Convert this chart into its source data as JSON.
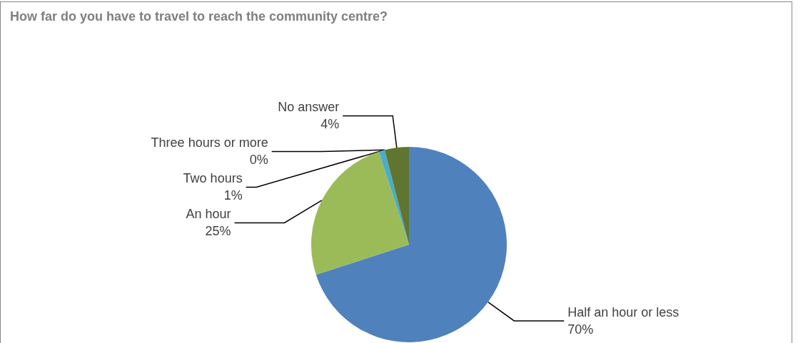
{
  "chart_data": {
    "type": "pie",
    "title": "How far do you have to travel to reach the community centre?",
    "categories": [
      "Half an hour or less",
      "An hour",
      "Two hours",
      "Three hours or more",
      "No answer"
    ],
    "values": [
      70,
      25,
      1,
      0,
      4
    ],
    "value_labels": [
      "70%",
      "25%",
      "1%",
      "0%",
      "4%"
    ],
    "colors": [
      "#4f81bd",
      "#9bbb59",
      "#4bacc6",
      "#8064a2",
      "#5f7530"
    ],
    "legend": false
  }
}
